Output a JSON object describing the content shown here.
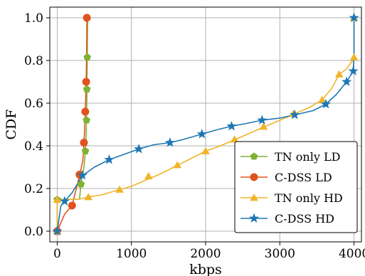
{
  "chart_data": {
    "type": "line",
    "title": "",
    "xlabel": "kbps",
    "ylabel": "CDF",
    "xlim": [
      -100,
      4100
    ],
    "ylim": [
      -0.05,
      1.05
    ],
    "xticks": [
      0,
      1000,
      2000,
      3000,
      4000
    ],
    "xtick_labels": [
      "0",
      "1000",
      "2000",
      "3000",
      "4000"
    ],
    "yticks": [
      0.0,
      0.2,
      0.4,
      0.6,
      0.8,
      1.0
    ],
    "ytick_labels": [
      "0.0",
      "0.2",
      "0.4",
      "0.6",
      "0.8",
      "1.0"
    ],
    "grid": true,
    "legend_position": "lower-right",
    "series": [
      {
        "name": "TN only LD",
        "color": "#7fb135",
        "marker": "pentagon",
        "line_points": [
          [
            0,
            0.0
          ],
          [
            0,
            0.148
          ],
          [
            300,
            0.15
          ],
          [
            320,
            0.22
          ],
          [
            360,
            0.3
          ],
          [
            380,
            0.37
          ],
          [
            390,
            0.45
          ],
          [
            395,
            0.52
          ],
          [
            398,
            0.6
          ],
          [
            400,
            0.67
          ],
          [
            402,
            0.74
          ],
          [
            405,
            0.82
          ],
          [
            410,
            1.0
          ]
        ],
        "marker_points": [
          [
            0,
            0.148
          ],
          [
            320,
            0.22
          ],
          [
            380,
            0.375
          ],
          [
            395,
            0.52
          ],
          [
            400,
            0.665
          ],
          [
            405,
            0.815
          ]
        ]
      },
      {
        "name": "C-DSS LD",
        "color": "#e0531f",
        "marker": "circle",
        "line_points": [
          [
            0,
            0.0
          ],
          [
            100,
            0.08
          ],
          [
            200,
            0.12
          ],
          [
            300,
            0.26
          ],
          [
            345,
            0.33
          ],
          [
            360,
            0.41
          ],
          [
            370,
            0.48
          ],
          [
            378,
            0.56
          ],
          [
            385,
            0.63
          ],
          [
            390,
            0.7
          ],
          [
            395,
            0.8
          ],
          [
            398,
            0.9
          ],
          [
            400,
            1.0
          ]
        ],
        "marker_points": [
          [
            0,
            0.0
          ],
          [
            200,
            0.12
          ],
          [
            300,
            0.265
          ],
          [
            360,
            0.415
          ],
          [
            378,
            0.56
          ],
          [
            390,
            0.7
          ],
          [
            400,
            1.0
          ]
        ]
      },
      {
        "name": "TN only HD",
        "color": "#f0b429",
        "marker": "triangle",
        "line_points": [
          [
            0,
            0.0
          ],
          [
            0,
            0.148
          ],
          [
            300,
            0.15
          ],
          [
            420,
            0.16
          ],
          [
            600,
            0.17
          ],
          [
            840,
            0.195
          ],
          [
            1000,
            0.21
          ],
          [
            1200,
            0.24
          ],
          [
            1400,
            0.27
          ],
          [
            1600,
            0.305
          ],
          [
            1800,
            0.34
          ],
          [
            2000,
            0.375
          ],
          [
            2200,
            0.4
          ],
          [
            2400,
            0.43
          ],
          [
            2600,
            0.46
          ],
          [
            2800,
            0.49
          ],
          [
            3000,
            0.52
          ],
          [
            3200,
            0.55
          ],
          [
            3400,
            0.58
          ],
          [
            3570,
            0.615
          ],
          [
            3700,
            0.67
          ],
          [
            3800,
            0.735
          ],
          [
            3900,
            0.76
          ],
          [
            3980,
            0.8
          ],
          [
            4000,
            0.81
          ],
          [
            4000,
            1.0
          ]
        ],
        "marker_points": [
          [
            0,
            0.0
          ],
          [
            0,
            0.148
          ],
          [
            420,
            0.16
          ],
          [
            840,
            0.195
          ],
          [
            1230,
            0.258
          ],
          [
            1620,
            0.31
          ],
          [
            2000,
            0.375
          ],
          [
            2390,
            0.43
          ],
          [
            2780,
            0.49
          ],
          [
            3180,
            0.55
          ],
          [
            3570,
            0.615
          ],
          [
            3800,
            0.735
          ],
          [
            4000,
            0.815
          ],
          [
            4000,
            1.0
          ]
        ]
      },
      {
        "name": "C-DSS HD",
        "color": "#1f77b4",
        "marker": "star",
        "line_points": [
          [
            0,
            0.0
          ],
          [
            50,
            0.12
          ],
          [
            100,
            0.14
          ],
          [
            200,
            0.18
          ],
          [
            340,
            0.26
          ],
          [
            500,
            0.3
          ],
          [
            700,
            0.335
          ],
          [
            900,
            0.36
          ],
          [
            1100,
            0.385
          ],
          [
            1300,
            0.405
          ],
          [
            1520,
            0.415
          ],
          [
            1700,
            0.43
          ],
          [
            1950,
            0.455
          ],
          [
            2150,
            0.475
          ],
          [
            2350,
            0.492
          ],
          [
            2550,
            0.505
          ],
          [
            2760,
            0.52
          ],
          [
            3000,
            0.53
          ],
          [
            3200,
            0.545
          ],
          [
            3450,
            0.565
          ],
          [
            3620,
            0.595
          ],
          [
            3760,
            0.64
          ],
          [
            3900,
            0.7
          ],
          [
            3990,
            0.75
          ],
          [
            4000,
            0.85
          ],
          [
            4000,
            1.0
          ]
        ],
        "marker_points": [
          [
            0,
            0.0
          ],
          [
            100,
            0.14
          ],
          [
            340,
            0.262
          ],
          [
            700,
            0.335
          ],
          [
            1100,
            0.385
          ],
          [
            1520,
            0.415
          ],
          [
            1950,
            0.455
          ],
          [
            2350,
            0.492
          ],
          [
            2760,
            0.52
          ],
          [
            3200,
            0.545
          ],
          [
            3620,
            0.595
          ],
          [
            3900,
            0.7
          ],
          [
            3990,
            0.75
          ],
          [
            4000,
            1.0
          ]
        ]
      }
    ]
  }
}
